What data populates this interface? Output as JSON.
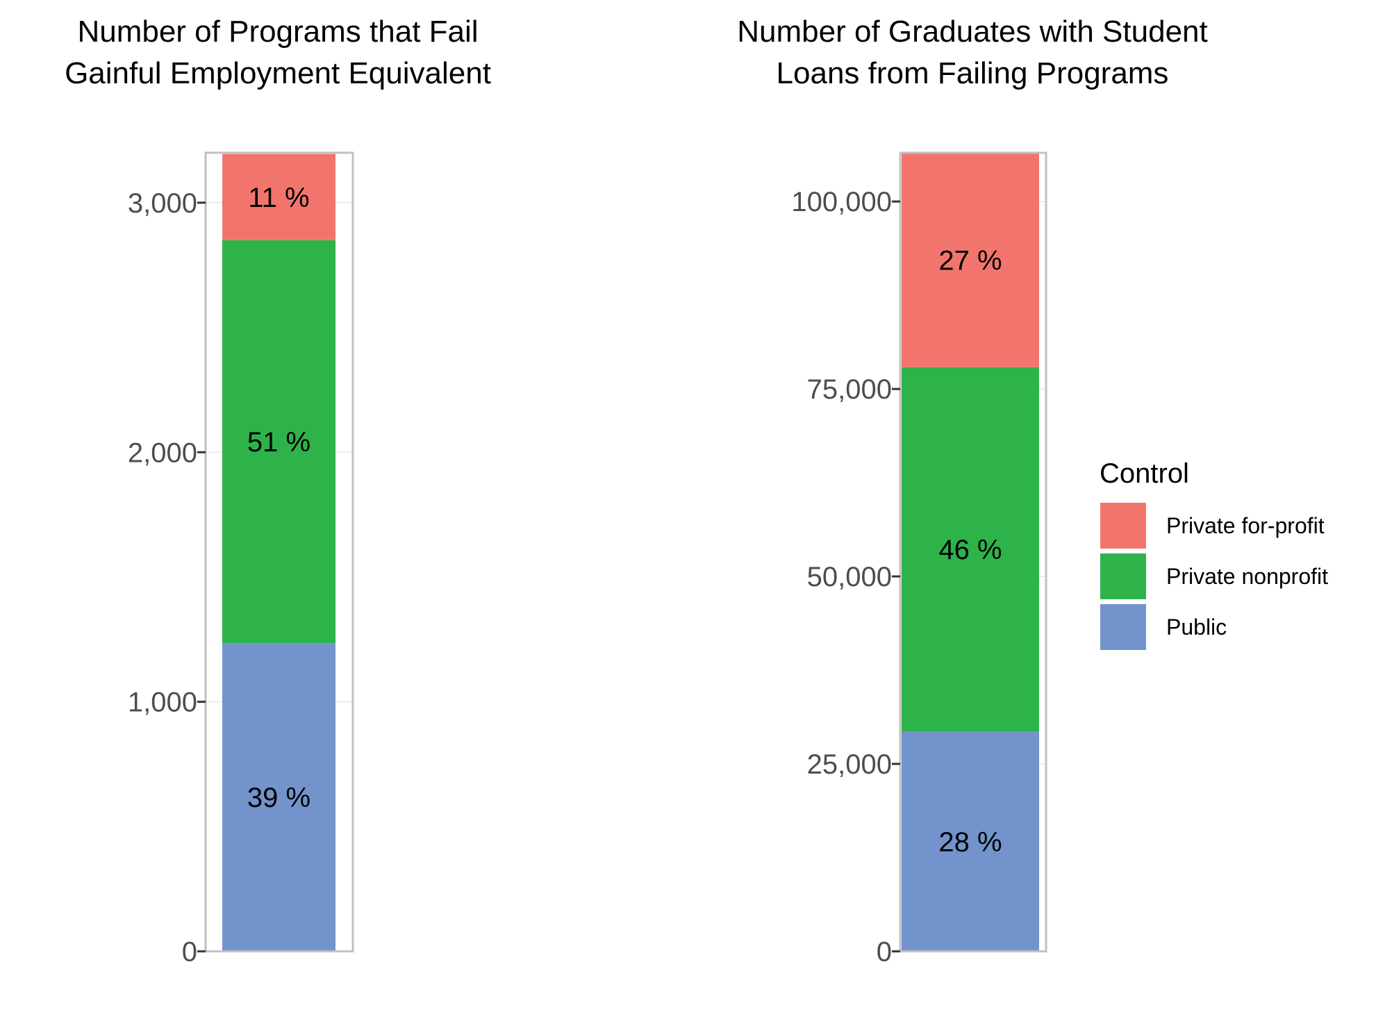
{
  "chart_data": [
    {
      "type": "bar",
      "stacked": true,
      "title_lines": [
        "Number of Programs that Fail",
        "Gainful Employment Equivalent"
      ],
      "xlabel": "",
      "ylabel": "",
      "ylim": [
        0,
        3200
      ],
      "yticks": [
        0,
        1000,
        2000,
        3000
      ],
      "ytick_labels": [
        "0",
        "1,000",
        "2,000",
        "3,000"
      ],
      "grid": true,
      "series": [
        {
          "name": "Public",
          "value": 1235,
          "label": "39 %"
        },
        {
          "name": "Private nonprofit",
          "value": 1615,
          "label": "51 %"
        },
        {
          "name": "Private for-profit",
          "value": 345,
          "label": "11 %"
        }
      ]
    },
    {
      "type": "bar",
      "stacked": true,
      "title_lines": [
        "Number of Graduates with Student",
        "Loans from Failing Programs"
      ],
      "xlabel": "",
      "ylabel": "",
      "ylim": [
        0,
        106500
      ],
      "yticks": [
        0,
        25000,
        50000,
        75000,
        100000
      ],
      "ytick_labels": [
        "0",
        "25,000",
        "50,000",
        "75,000",
        "100,000"
      ],
      "grid": true,
      "series": [
        {
          "name": "Public",
          "value": 29300,
          "label": "28 %"
        },
        {
          "name": "Private nonprofit",
          "value": 48600,
          "label": "46 %"
        },
        {
          "name": "Private for-profit",
          "value": 28600,
          "label": "27 %"
        }
      ]
    }
  ],
  "legend": {
    "title": "Control",
    "placement": "right",
    "items": [
      {
        "label": "Private for-profit",
        "color": "#F2756D"
      },
      {
        "label": "Private nonprofit",
        "color": "#2EB34A"
      },
      {
        "label": "Public",
        "color": "#7293CB"
      }
    ]
  },
  "colors": {
    "Public": "#7293CB",
    "Private nonprofit": "#2EB34A",
    "Private for-profit": "#F2756D"
  }
}
